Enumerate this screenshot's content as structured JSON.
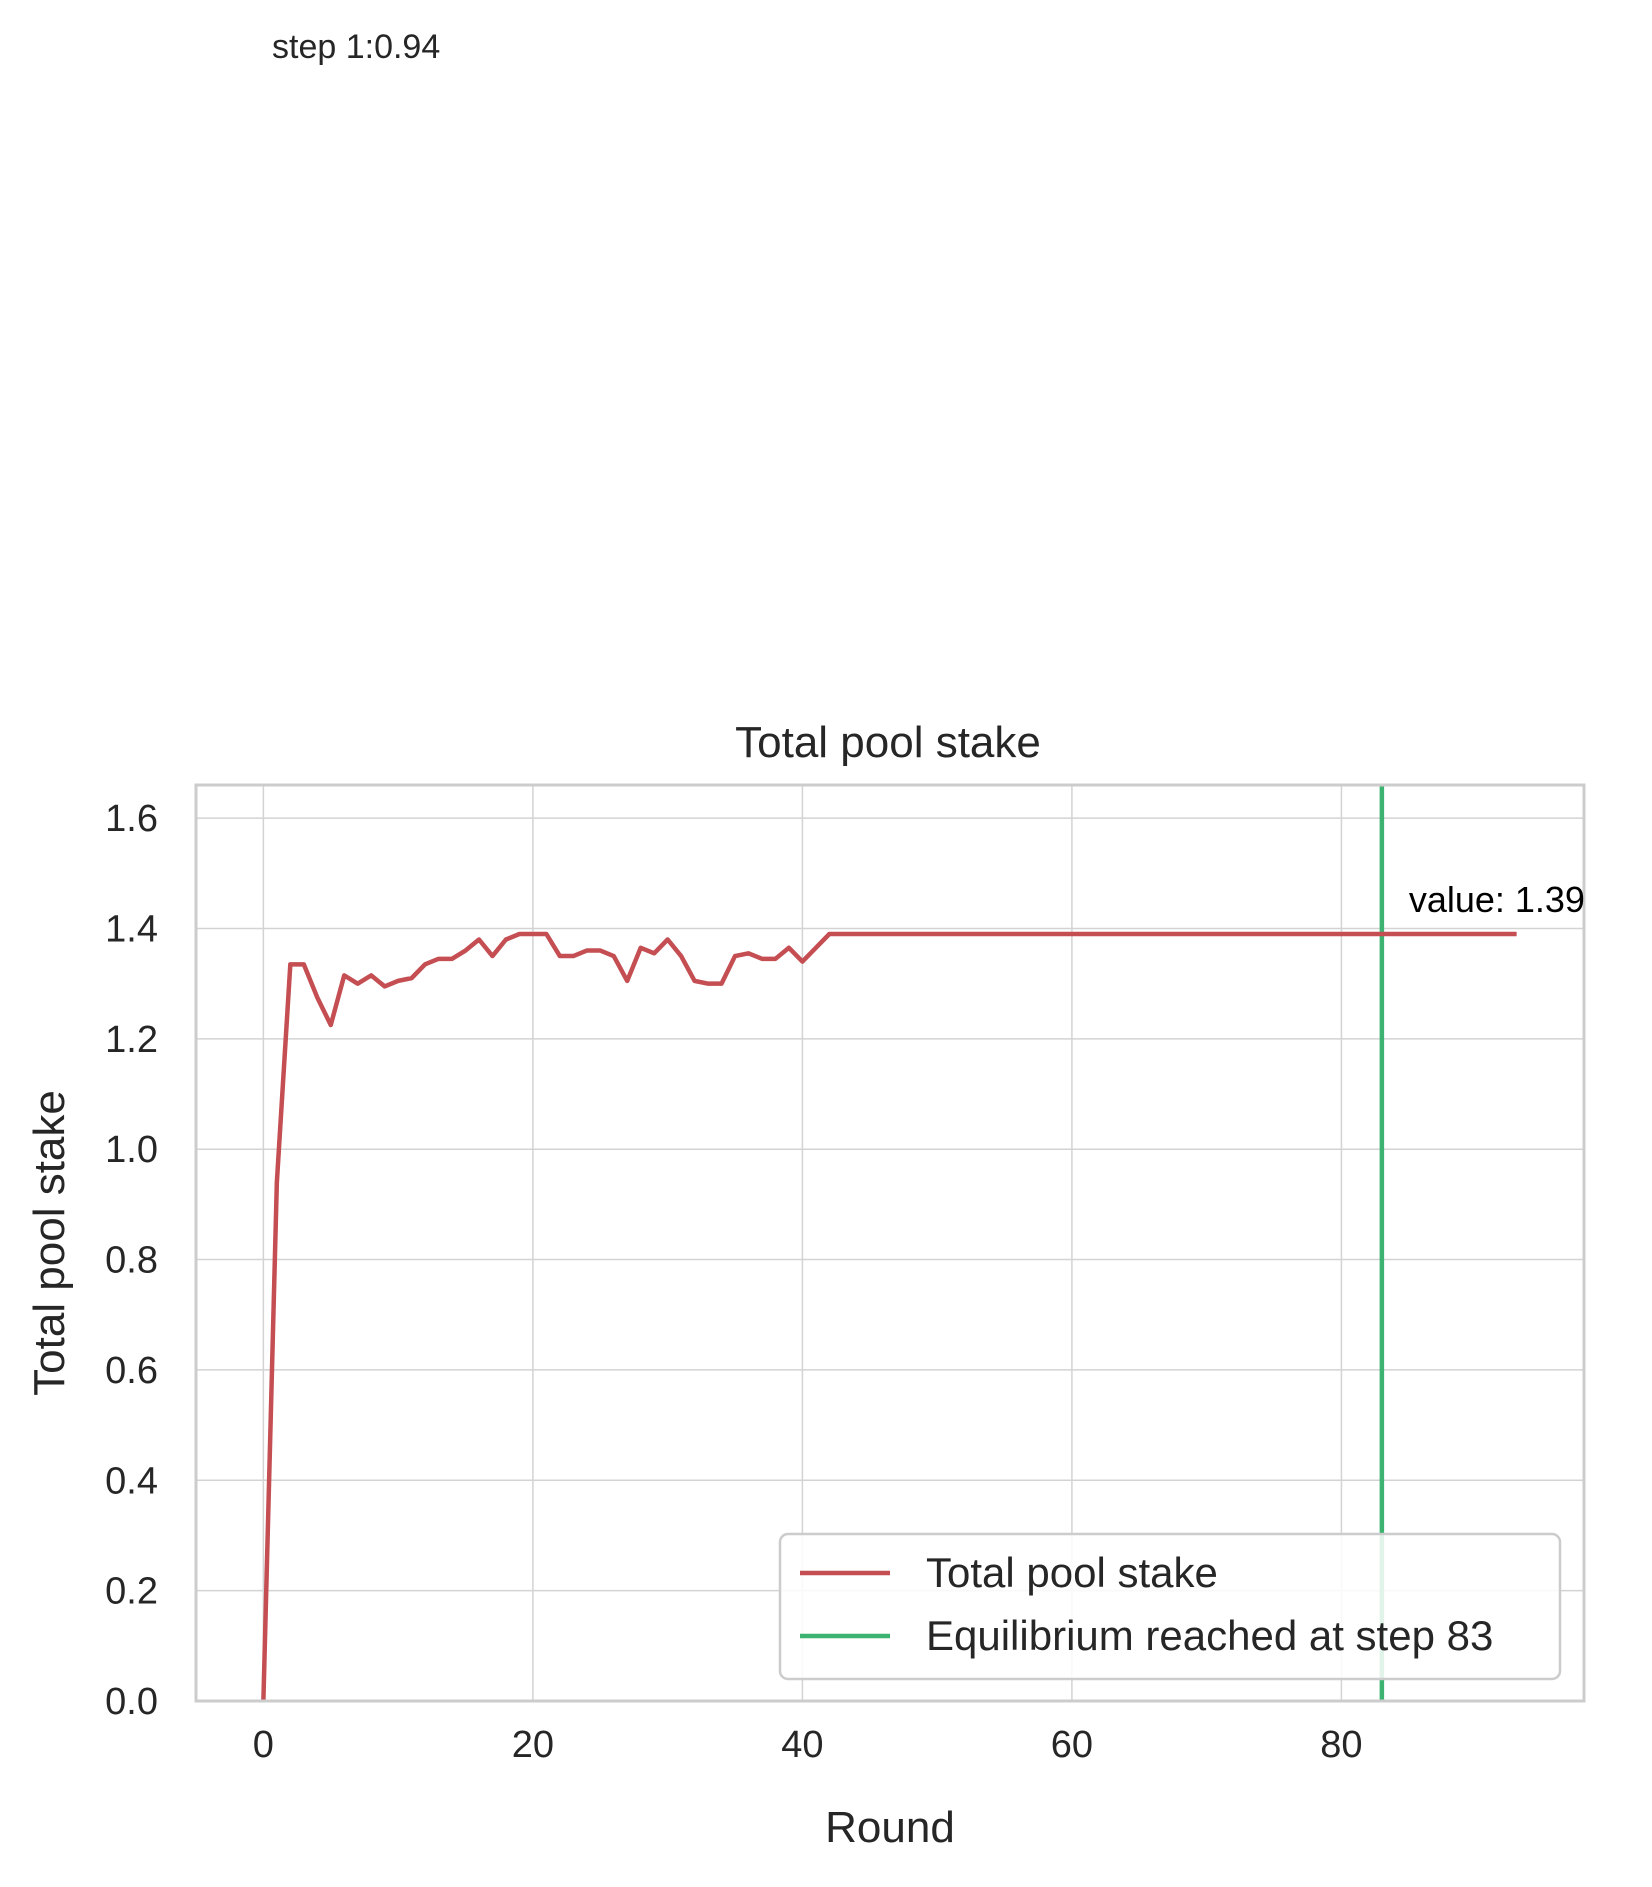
{
  "top_annotation": "step 1:0.94",
  "chart_data": {
    "type": "line",
    "title": "Total pool stake",
    "xlabel": "Round",
    "ylabel": "Total pool stake",
    "xlim": [
      -5,
      98
    ],
    "ylim": [
      0,
      1.66
    ],
    "grid": true,
    "x_ticks": [
      0,
      20,
      40,
      60,
      80
    ],
    "y_ticks": [
      0.0,
      0.2,
      0.4,
      0.6,
      0.8,
      1.0,
      1.2,
      1.4,
      1.6
    ],
    "x_tick_labels": [
      "0",
      "20",
      "40",
      "60",
      "80"
    ],
    "y_tick_labels": [
      "0.0",
      "0.2",
      "0.4",
      "0.6",
      "0.8",
      "1.0",
      "1.2",
      "1.4",
      "1.6"
    ],
    "series": [
      {
        "name": "Total pool stake",
        "color": "#c44e52",
        "x": [
          0,
          1,
          2,
          3,
          4,
          5,
          6,
          7,
          8,
          9,
          10,
          11,
          12,
          13,
          14,
          15,
          16,
          17,
          18,
          19,
          20,
          21,
          22,
          23,
          24,
          25,
          26,
          27,
          28,
          29,
          30,
          31,
          32,
          33,
          34,
          35,
          36,
          37,
          38,
          39,
          40,
          41,
          42,
          43,
          44,
          45,
          46,
          47,
          48,
          49,
          50,
          51,
          52,
          53,
          54,
          55,
          56,
          57,
          58,
          59,
          60,
          61,
          62,
          63,
          64,
          65,
          66,
          67,
          68,
          69,
          70,
          71,
          72,
          73,
          74,
          75,
          76,
          77,
          78,
          79,
          80,
          81,
          82,
          83,
          84,
          85,
          86,
          87,
          88,
          89,
          90,
          91,
          92,
          93
        ],
        "y": [
          0.0,
          0.94,
          1.335,
          1.335,
          1.275,
          1.225,
          1.315,
          1.3,
          1.315,
          1.295,
          1.305,
          1.31,
          1.335,
          1.345,
          1.345,
          1.36,
          1.38,
          1.35,
          1.38,
          1.39,
          1.39,
          1.39,
          1.35,
          1.35,
          1.36,
          1.36,
          1.35,
          1.305,
          1.365,
          1.355,
          1.38,
          1.35,
          1.305,
          1.3,
          1.3,
          1.35,
          1.355,
          1.345,
          1.345,
          1.365,
          1.34,
          1.365,
          1.39,
          1.39,
          1.39,
          1.39,
          1.39,
          1.39,
          1.39,
          1.39,
          1.39,
          1.39,
          1.39,
          1.39,
          1.39,
          1.39,
          1.39,
          1.39,
          1.39,
          1.39,
          1.39,
          1.39,
          1.39,
          1.39,
          1.39,
          1.39,
          1.39,
          1.39,
          1.39,
          1.39,
          1.39,
          1.39,
          1.39,
          1.39,
          1.39,
          1.39,
          1.39,
          1.39,
          1.39,
          1.39,
          1.39,
          1.39,
          1.39,
          1.39,
          1.39,
          1.39,
          1.39,
          1.39,
          1.39,
          1.39,
          1.39,
          1.39,
          1.39,
          1.39
        ]
      }
    ],
    "vline": {
      "name": "Equilibrium reached at step 83",
      "x": 83,
      "color": "#3cb371"
    },
    "annotations": [
      {
        "text": "value: 1.39",
        "x": 85,
        "y": 1.43
      }
    ],
    "legend": {
      "placement": "lower right",
      "entries": [
        "Total pool stake",
        "Equilibrium reached at step 83"
      ]
    }
  }
}
